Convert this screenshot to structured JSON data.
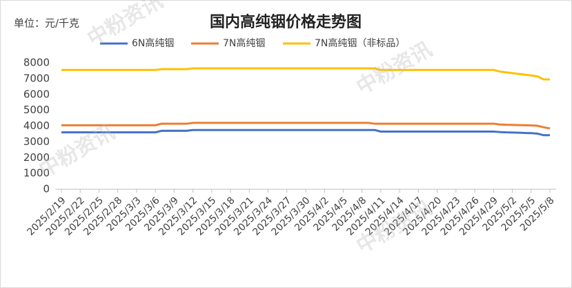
{
  "chart_data": {
    "type": "line",
    "title": "国内高纯铟价格走势图",
    "unit_label": "单位：元/千克",
    "watermark": "中粉资讯",
    "categories": [
      "2025/2/19",
      null,
      null,
      "2025/2/22",
      null,
      null,
      "2025/2/25",
      null,
      null,
      "2025/2/28",
      null,
      null,
      "2025/3/3",
      null,
      null,
      "2025/3/6",
      null,
      null,
      "2025/3/9",
      null,
      null,
      "2025/3/12",
      null,
      null,
      "2025/3/15",
      null,
      null,
      "2025/3/18",
      null,
      null,
      "2025/3/21",
      null,
      null,
      "2025/3/24",
      null,
      null,
      "2025/3/27",
      null,
      null,
      "2025/3/30",
      null,
      null,
      "2025/4/2",
      null,
      null,
      "2025/4/5",
      null,
      null,
      "2025/4/8",
      null,
      null,
      "2025/4/11",
      null,
      null,
      "2025/4/14",
      null,
      null,
      "2025/4/17",
      null,
      null,
      "2025/4/20",
      null,
      null,
      "2025/4/23",
      null,
      null,
      "2025/4/26",
      null,
      null,
      "2025/4/29",
      null,
      null,
      "2025/5/2",
      null,
      null,
      "2025/5/5",
      null,
      null,
      "2025/5/8"
    ],
    "series": [
      {
        "name": "6N高纯铟",
        "color": "#4472c4",
        "values": [
          3600,
          3600,
          3600,
          3600,
          3600,
          3600,
          3600,
          3600,
          3600,
          3600,
          3600,
          3600,
          3600,
          3600,
          3600,
          3600,
          3700,
          3700,
          3700,
          3700,
          3700,
          3750,
          3750,
          3750,
          3750,
          3750,
          3750,
          3750,
          3750,
          3750,
          3750,
          3750,
          3750,
          3750,
          3750,
          3750,
          3750,
          3750,
          3750,
          3750,
          3750,
          3750,
          3750,
          3750,
          3750,
          3750,
          3750,
          3750,
          3750,
          3750,
          3750,
          3650,
          3650,
          3650,
          3650,
          3650,
          3650,
          3650,
          3650,
          3650,
          3650,
          3650,
          3650,
          3650,
          3650,
          3650,
          3650,
          3650,
          3650,
          3650,
          3620,
          3600,
          3590,
          3580,
          3560,
          3550,
          3520,
          3420,
          3420
        ]
      },
      {
        "name": "7N高纯铟",
        "color": "#ed7d31",
        "values": [
          4050,
          4050,
          4050,
          4050,
          4050,
          4050,
          4050,
          4050,
          4050,
          4050,
          4050,
          4050,
          4050,
          4050,
          4050,
          4050,
          4150,
          4150,
          4150,
          4150,
          4150,
          4200,
          4200,
          4200,
          4200,
          4200,
          4200,
          4200,
          4200,
          4200,
          4200,
          4200,
          4200,
          4200,
          4200,
          4200,
          4200,
          4200,
          4200,
          4200,
          4200,
          4200,
          4200,
          4200,
          4200,
          4200,
          4200,
          4200,
          4200,
          4200,
          4150,
          4150,
          4150,
          4150,
          4150,
          4150,
          4150,
          4150,
          4150,
          4150,
          4150,
          4150,
          4150,
          4150,
          4150,
          4150,
          4150,
          4150,
          4150,
          4150,
          4100,
          4080,
          4070,
          4060,
          4050,
          4040,
          4020,
          3920,
          3850
        ]
      },
      {
        "name": "7N高纯铟（非标品）",
        "color": "#ffc000",
        "values": [
          7550,
          7550,
          7550,
          7550,
          7550,
          7550,
          7550,
          7550,
          7550,
          7550,
          7550,
          7550,
          7550,
          7550,
          7550,
          7550,
          7600,
          7600,
          7600,
          7600,
          7600,
          7650,
          7650,
          7650,
          7650,
          7650,
          7650,
          7650,
          7650,
          7650,
          7650,
          7650,
          7650,
          7650,
          7650,
          7650,
          7650,
          7650,
          7650,
          7650,
          7650,
          7650,
          7650,
          7650,
          7650,
          7650,
          7650,
          7650,
          7650,
          7650,
          7650,
          7550,
          7550,
          7550,
          7550,
          7550,
          7550,
          7550,
          7550,
          7550,
          7550,
          7550,
          7550,
          7550,
          7550,
          7550,
          7550,
          7550,
          7550,
          7550,
          7450,
          7400,
          7350,
          7300,
          7250,
          7200,
          7150,
          6950,
          6950
        ]
      }
    ],
    "ylim": [
      0,
      8000
    ],
    "yticks": [
      0,
      1000,
      2000,
      3000,
      4000,
      5000,
      6000,
      7000,
      8000
    ],
    "grid": false
  }
}
